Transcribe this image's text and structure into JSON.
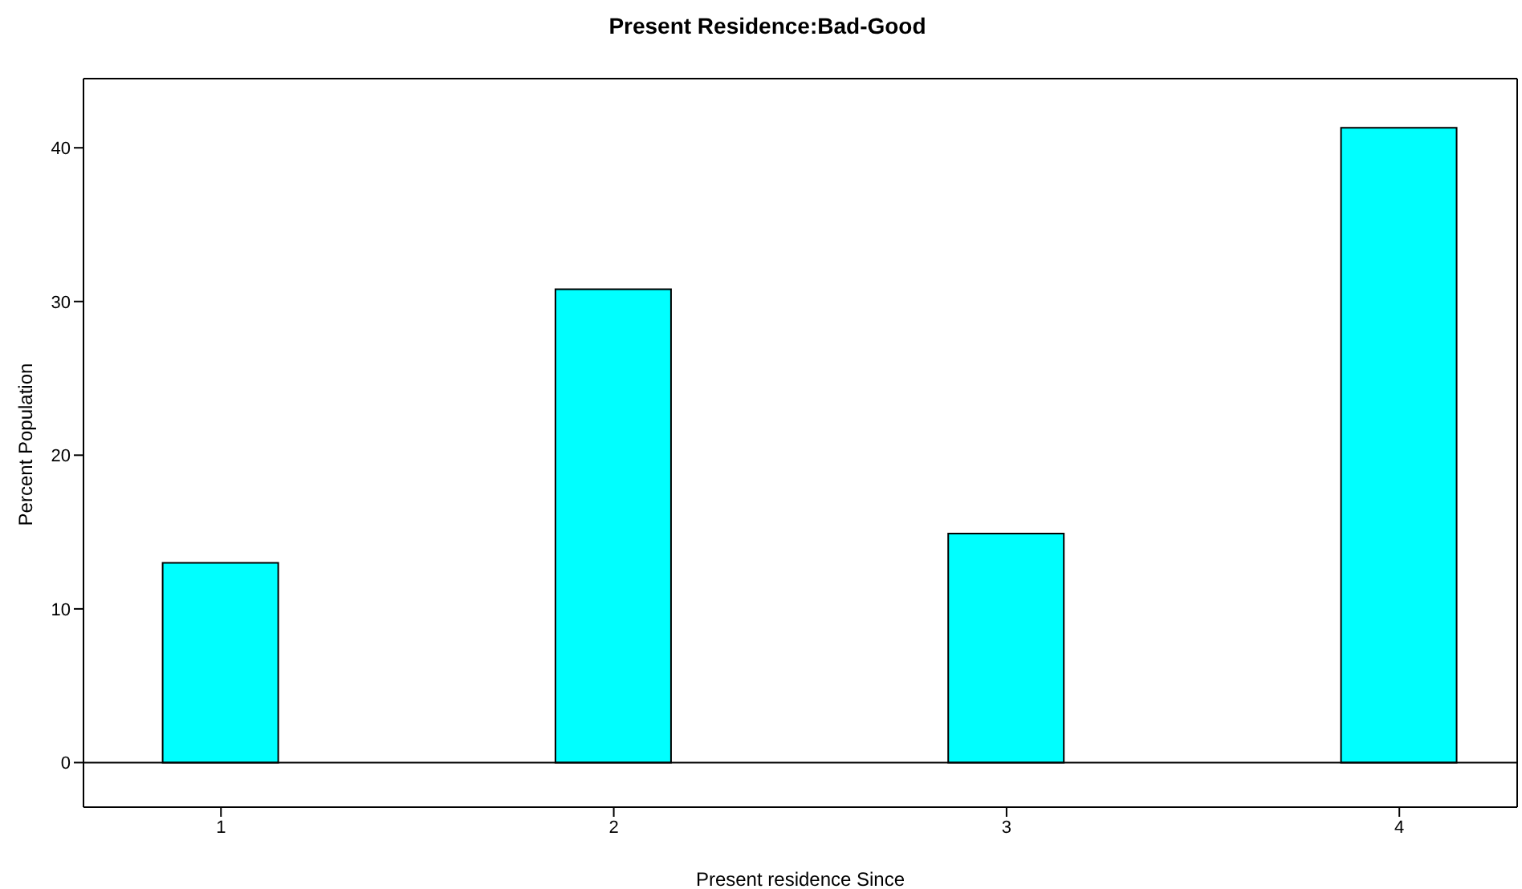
{
  "chart_data": {
    "type": "bar",
    "title": "Present Residence:Bad-Good",
    "xlabel": "Present residence Since",
    "ylabel": "Percent Population",
    "x": [
      1,
      2,
      3,
      4
    ],
    "values": [
      13.0,
      30.8,
      14.9,
      41.3
    ],
    "color": "#00ffff",
    "xlim": [
      0.65,
      4.3
    ],
    "xticks": [
      1,
      2,
      3,
      4
    ],
    "ylim": [
      -2.9,
      44.5
    ],
    "yticks": [
      0,
      10,
      20,
      30,
      40
    ],
    "ref_lines": [
      {
        "axis": "y",
        "value": 0,
        "color": "#000000"
      }
    ],
    "grid": false
  }
}
